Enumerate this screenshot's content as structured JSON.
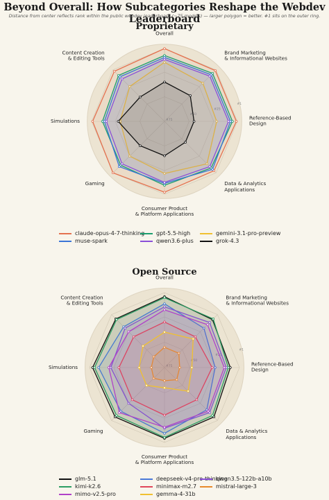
{
  "header": {
    "title": "Beyond Overall: How Subcategories Reshape the Webdev Leaderboard",
    "subtitle": "Distance from center reflects rank within the public webdev leaderboard (~75 models) — larger polygon = better.   #1 sits on the outer ring."
  },
  "chart_data": [
    {
      "type": "radar",
      "title": "Proprietary",
      "categories": [
        "Overall",
        "Brand Marketing\n& Informational Websites",
        "Reference-Based\nDesign",
        "Data & Analytics\nApplications",
        "Consumer Product\n& Platform Applications",
        "Gaming",
        "Simulations",
        "Content Creation\n& Editing Tools"
      ],
      "rlim": [
        75,
        1
      ],
      "rticks": [
        {
          "value": 75,
          "label": "#75"
        },
        {
          "value": 50,
          "label": "#50"
        },
        {
          "value": 25,
          "label": "#25"
        },
        {
          "value": 1,
          "label": "#1"
        }
      ],
      "grid": true,
      "series": [
        {
          "name": "claude-opus-4-7-thinking",
          "color": "#e4714f",
          "values": [
            1,
            2,
            2,
            4,
            3,
            1,
            2,
            3
          ]
        },
        {
          "name": "gpt-5.5-high",
          "color": "#1b9e6e",
          "values": [
            8,
            6,
            6,
            8,
            10,
            12,
            12,
            9
          ]
        },
        {
          "name": "gemini-3.1-pro-preview",
          "color": "#f0c030",
          "values": [
            15,
            20,
            22,
            14,
            22,
            25,
            30,
            25
          ]
        },
        {
          "name": "muse-spark",
          "color": "#3b75d6",
          "values": [
            10,
            8,
            8,
            6,
            12,
            10,
            14,
            11
          ]
        },
        {
          "name": "qwen3.6-plus",
          "color": "#8a4fd8",
          "values": [
            12,
            10,
            10,
            10,
            13,
            14,
            16,
            14
          ]
        },
        {
          "name": "grok-4.3",
          "color": "#111111",
          "values": [
            35,
            38,
            45,
            45,
            40,
            40,
            28,
            40
          ]
        }
      ]
    },
    {
      "type": "radar",
      "title": "Open Source",
      "categories": [
        "Overall",
        "Brand Marketing\n& Informational Websites",
        "Reference-Based\nDesign",
        "Data & Analytics\nApplications",
        "Consumer Product\n& Platform Applications",
        "Gaming",
        "Simulations",
        "Content Creation\n& Editing Tools"
      ],
      "rlim": [
        75,
        1
      ],
      "rticks": [
        {
          "value": 75,
          "label": "#75"
        },
        {
          "value": 50,
          "label": "#50"
        },
        {
          "value": 25,
          "label": "#25"
        },
        {
          "value": 1,
          "label": "#1"
        }
      ],
      "grid": true,
      "series": [
        {
          "name": "glm-5.1",
          "color": "#111111",
          "values": [
            5,
            8,
            10,
            6,
            5,
            6,
            4,
            7
          ]
        },
        {
          "name": "deepseek-v4-pro-thinking",
          "color": "#4a78d8",
          "values": [
            12,
            20,
            25,
            16,
            10,
            14,
            10,
            18
          ]
        },
        {
          "name": "qwen3.5-122b-a10b",
          "color": "#8a4fd8",
          "values": [
            15,
            12,
            14,
            12,
            15,
            25,
            22,
            20
          ]
        },
        {
          "name": "kimi-k2.6",
          "color": "#2a9d62",
          "values": [
            6,
            7,
            12,
            8,
            6,
            8,
            6,
            8
          ]
        },
        {
          "name": "minimax-m2.7",
          "color": "#e0455a",
          "values": [
            30,
            32,
            28,
            30,
            28,
            30,
            30,
            32
          ]
        },
        {
          "name": "mistral-large-3",
          "color": "#e8892a",
          "values": [
            55,
            55,
            60,
            58,
            62,
            60,
            62,
            60
          ]
        },
        {
          "name": "mimo-v2.5-pro",
          "color": "#b041c8",
          "values": [
            18,
            15,
            16,
            14,
            16,
            12,
            20,
            25
          ]
        },
        {
          "name": "gemma-4-31b",
          "color": "#f0c030",
          "values": [
            40,
            35,
            48,
            42,
            55,
            50,
            50,
            45
          ]
        }
      ]
    }
  ]
}
